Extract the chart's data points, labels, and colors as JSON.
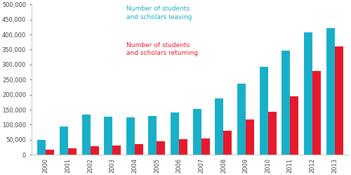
{
  "years": [
    "2000",
    "2001",
    "2002",
    "2003",
    "2004",
    "2005",
    "2006",
    "2007",
    "2008",
    "2009",
    "2010",
    "2011",
    "2012",
    "2013"
  ],
  "leaving": [
    50000,
    93000,
    133000,
    127000,
    124000,
    128000,
    140000,
    153000,
    187000,
    237000,
    293000,
    347000,
    407000,
    421000
  ],
  "returning": [
    18000,
    22000,
    28000,
    30000,
    35000,
    44000,
    53000,
    55000,
    79000,
    117000,
    142000,
    195000,
    278000,
    361000
  ],
  "color_leaving": "#18B0C8",
  "color_returning": "#E8192C",
  "label_leaving": "Number of students\nand scholars leaving",
  "label_returning": "Number of students\nand scholars returning",
  "ylim": [
    0,
    500000
  ],
  "yticks": [
    0,
    50000,
    100000,
    150000,
    200000,
    250000,
    300000,
    350000,
    400000,
    450000,
    500000
  ],
  "background_color": "#ffffff",
  "bar_width": 0.38
}
